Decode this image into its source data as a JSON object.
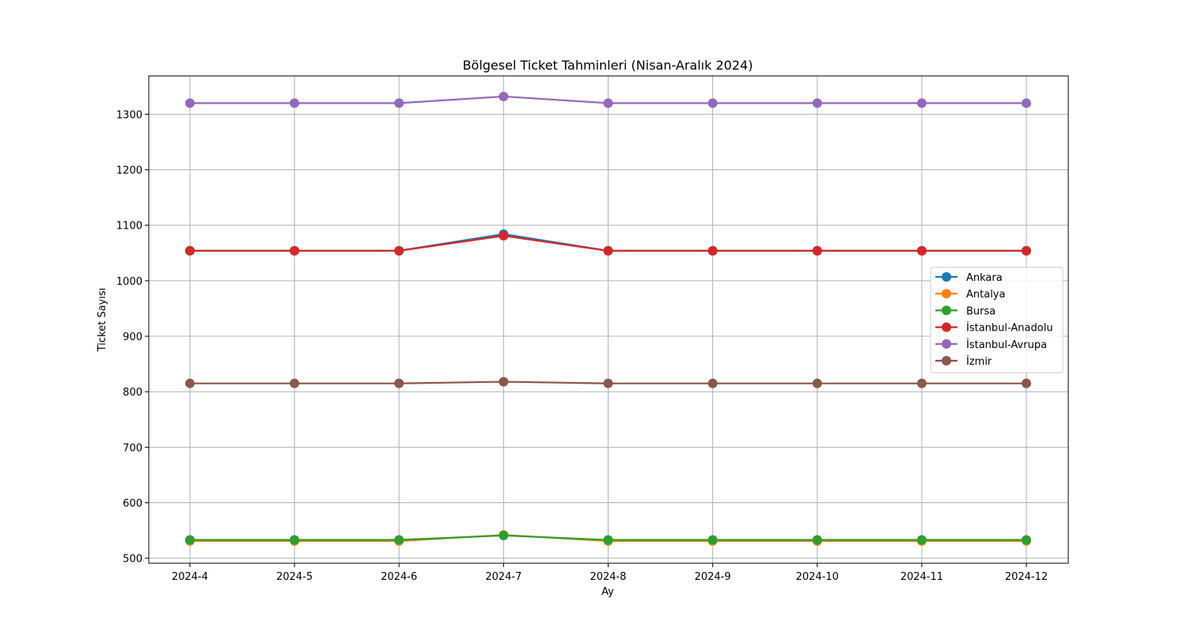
{
  "chart_data": {
    "type": "line",
    "title": "Bölgesel Ticket Tahminleri (Nisan-Aralık 2024)",
    "xlabel": "Ay",
    "ylabel": "Ticket Sayısı",
    "categories": [
      "2024-4",
      "2024-5",
      "2024-6",
      "2024-7",
      "2024-8",
      "2024-9",
      "2024-10",
      "2024-11",
      "2024-12"
    ],
    "ylim": [
      491,
      1369
    ],
    "yticks": [
      500,
      600,
      700,
      800,
      900,
      1000,
      1100,
      1200,
      1300
    ],
    "grid": true,
    "legend_position": "center-right",
    "series": [
      {
        "name": "Ankara",
        "color": "#1f77b4",
        "values": [
          1054,
          1054,
          1054,
          1084,
          1054,
          1054,
          1054,
          1054,
          1054
        ]
      },
      {
        "name": "Antalya",
        "color": "#ff7f0e",
        "values": [
          531,
          531,
          531,
          542,
          531,
          531,
          531,
          531,
          531
        ]
      },
      {
        "name": "Bursa",
        "color": "#2ca02c",
        "values": [
          533,
          533,
          533,
          541,
          533,
          533,
          533,
          533,
          533
        ]
      },
      {
        "name": "İstanbul-Anadolu",
        "color": "#d62728",
        "values": [
          1054,
          1054,
          1054,
          1081,
          1054,
          1054,
          1054,
          1054,
          1054
        ]
      },
      {
        "name": "İstanbul-Avrupa",
        "color": "#9467bd",
        "values": [
          1320,
          1320,
          1320,
          1332,
          1320,
          1320,
          1320,
          1320,
          1320
        ]
      },
      {
        "name": "İzmir",
        "color": "#8c564b",
        "values": [
          815,
          815,
          815,
          818,
          815,
          815,
          815,
          815,
          815
        ]
      }
    ]
  }
}
